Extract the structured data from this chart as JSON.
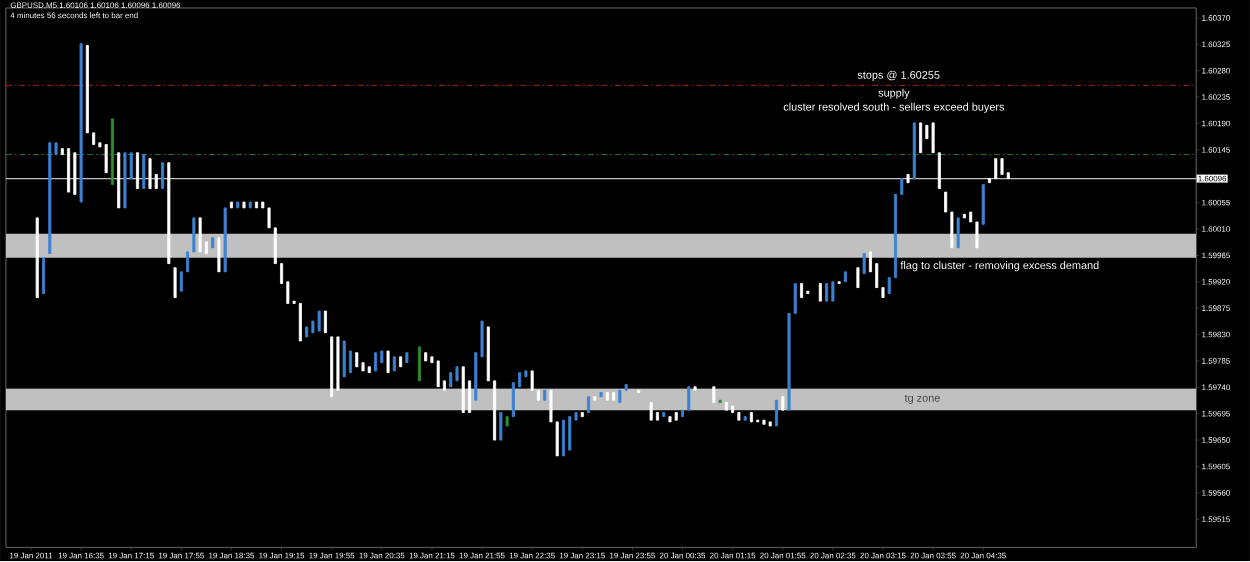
{
  "chart_data": {
    "type": "candlestick",
    "title": "GBPUSD,M5  1.60106 1.60106 1.60096 1.60096",
    "subtitle": "4 minutes 56 seconds left to bar end",
    "x": [
      "2011-01-19T16:00",
      "2011-01-19T16:05",
      "2011-01-19T16:10",
      "2011-01-19T16:15",
      "2011-01-19T16:20",
      "2011-01-19T16:25",
      "2011-01-19T16:30",
      "2011-01-19T16:35",
      "2011-01-19T16:40",
      "2011-01-19T16:45",
      "2011-01-19T16:50",
      "2011-01-19T16:55",
      "2011-01-19T17:00",
      "2011-01-19T17:05",
      "2011-01-19T17:10",
      "2011-01-19T17:15",
      "2011-01-19T17:20",
      "2011-01-19T17:25",
      "2011-01-19T17:30",
      "2011-01-19T17:35",
      "2011-01-19T17:40",
      "2011-01-19T17:45",
      "2011-01-19T17:50",
      "2011-01-19T17:55",
      "2011-01-19T18:00",
      "2011-01-19T18:05",
      "2011-01-19T18:10",
      "2011-01-19T18:15",
      "2011-01-19T18:20",
      "2011-01-19T18:25",
      "2011-01-19T18:30",
      "2011-01-19T18:35",
      "2011-01-19T18:40",
      "2011-01-19T18:45",
      "2011-01-19T18:50",
      "2011-01-19T18:55",
      "2011-01-19T19:00",
      "2011-01-19T19:05",
      "2011-01-19T19:10",
      "2011-01-19T19:15",
      "2011-01-19T19:20",
      "2011-01-19T19:25",
      "2011-01-19T19:30",
      "2011-01-19T19:35",
      "2011-01-19T19:40",
      "2011-01-19T19:45",
      "2011-01-19T19:50",
      "2011-01-19T19:55",
      "2011-01-19T20:00",
      "2011-01-19T20:05",
      "2011-01-19T20:10",
      "2011-01-19T20:15",
      "2011-01-19T20:20",
      "2011-01-19T20:25",
      "2011-01-19T20:30",
      "2011-01-19T20:35",
      "2011-01-19T20:40",
      "2011-01-19T20:45",
      "2011-01-19T20:50",
      "2011-01-19T20:55",
      "2011-01-19T21:05",
      "2011-01-19T21:10",
      "2011-01-19T21:15",
      "2011-01-19T21:20",
      "2011-01-19T21:25",
      "2011-01-19T21:30",
      "2011-01-19T21:35",
      "2011-01-19T21:40",
      "2011-01-19T21:45",
      "2011-01-19T21:50",
      "2011-01-19T21:55",
      "2011-01-19T22:00",
      "2011-01-19T22:05",
      "2011-01-19T22:10",
      "2011-01-19T22:15",
      "2011-01-19T22:20",
      "2011-01-19T22:25",
      "2011-01-19T22:30",
      "2011-01-19T22:35",
      "2011-01-19T22:40",
      "2011-01-19T22:45",
      "2011-01-19T22:50",
      "2011-01-19T22:55",
      "2011-01-19T23:00",
      "2011-01-19T23:05",
      "2011-01-19T23:10",
      "2011-01-19T23:15",
      "2011-01-19T23:20",
      "2011-01-19T23:25",
      "2011-01-19T23:30",
      "2011-01-19T23:35",
      "2011-01-19T23:40",
      "2011-01-19T23:45",
      "2011-01-19T23:50",
      "2011-01-20T00:00",
      "2011-01-20T00:10",
      "2011-01-20T00:15",
      "2011-01-20T00:20",
      "2011-01-20T00:25",
      "2011-01-20T00:30",
      "2011-01-20T00:35",
      "2011-01-20T00:40",
      "2011-01-20T00:45",
      "2011-01-20T01:00",
      "2011-01-20T01:05",
      "2011-01-20T01:10",
      "2011-01-20T01:15",
      "2011-01-20T01:20",
      "2011-01-20T01:25",
      "2011-01-20T01:30",
      "2011-01-20T01:35",
      "2011-01-20T01:40",
      "2011-01-20T01:45",
      "2011-01-20T01:50",
      "2011-01-20T01:55",
      "2011-01-20T02:00",
      "2011-01-20T02:05",
      "2011-01-20T02:10",
      "2011-01-20T02:15",
      "2011-01-20T02:25",
      "2011-01-20T02:30",
      "2011-01-20T02:35",
      "2011-01-20T02:40",
      "2011-01-20T02:45",
      "2011-01-20T02:55",
      "2011-01-20T03:00",
      "2011-01-20T03:05",
      "2011-01-20T03:10",
      "2011-01-20T03:15",
      "2011-01-20T03:20",
      "2011-01-20T03:25",
      "2011-01-20T03:30",
      "2011-01-20T03:35",
      "2011-01-20T03:40",
      "2011-01-20T03:45",
      "2011-01-20T03:50",
      "2011-01-20T03:55",
      "2011-01-20T04:00",
      "2011-01-20T04:05",
      "2011-01-20T04:10",
      "2011-01-20T04:15",
      "2011-01-20T04:20",
      "2011-01-20T04:25",
      "2011-01-20T04:30",
      "2011-01-20T04:35",
      "2011-01-20T04:40",
      "2011-01-20T04:45",
      "2011-01-20T04:50",
      "2011-01-20T04:55"
    ],
    "colors": [
      "#ffffff",
      "#3c82d2",
      "#3c82d2",
      "#3c82d2",
      "#ffffff",
      "#ffffff",
      "#ffffff",
      "#3c82d2",
      "#ffffff",
      "#ffffff",
      "#ffffff",
      "#ffffff",
      "#2e8b2e",
      "#ffffff",
      "#3c82d2",
      "#3c82d2",
      "#ffffff",
      "#3c82d2",
      "#ffffff",
      "#ffffff",
      "#3c82d2",
      "#ffffff",
      "#ffffff",
      "#3c82d2",
      "#3c82d2",
      "#3c82d2",
      "#ffffff",
      "#ffffff",
      "#3c82d2",
      "#ffffff",
      "#3c82d2",
      "#ffffff",
      "#3c82d2",
      "#ffffff",
      "#3c82d2",
      "#ffffff",
      "#ffffff",
      "#ffffff",
      "#ffffff",
      "#ffffff",
      "#ffffff",
      "#ffffff",
      "#ffffff",
      "#3c82d2",
      "#3c82d2",
      "#3c82d2",
      "#ffffff",
      "#ffffff",
      "#ffffff",
      "#3c82d2",
      "#3c82d2",
      "#ffffff",
      "#ffffff",
      "#ffffff",
      "#3c82d2",
      "#3c82d2",
      "#ffffff",
      "#3c82d2",
      "#ffffff",
      "#3c82d2",
      "#2e8b2e",
      "#ffffff",
      "#ffffff",
      "#ffffff",
      "#ffffff",
      "#3c82d2",
      "#3c82d2",
      "#ffffff",
      "#ffffff",
      "#3c82d2",
      "#3c82d2",
      "#ffffff",
      "#ffffff",
      "#3c82d2",
      "#2e8b2e",
      "#3c82d2",
      "#3c82d2",
      "#3c82d2",
      "#ffffff",
      "#ffffff",
      "#3c82d2",
      "#ffffff",
      "#ffffff",
      "#3c82d2",
      "#3c82d2",
      "#3c82d2",
      "#ffffff",
      "#3c82d2",
      "#ffffff",
      "#3c82d2",
      "#ffffff",
      "#ffffff",
      "#3c82d2",
      "#3c82d2",
      "#ffffff",
      "#ffffff",
      "#ffffff",
      "#3c82d2",
      "#ffffff",
      "#ffffff",
      "#3c82d2",
      "#3c82d2",
      "#ffffff",
      "#ffffff",
      "#2e8b2e",
      "#ffffff",
      "#ffffff",
      "#ffffff",
      "#3c82d2",
      "#ffffff",
      "#ffffff",
      "#ffffff",
      "#ffffff",
      "#3c82d2",
      "#ffffff",
      "#3c82d2",
      "#3c82d2",
      "#ffffff",
      "#ffffff",
      "#ffffff",
      "#3c82d2",
      "#3c82d2",
      "#ffffff",
      "#3c82d2",
      "#ffffff",
      "#3c82d2",
      "#ffffff",
      "#ffffff",
      "#ffffff",
      "#3c82d2",
      "#3c82d2",
      "#3c82d2",
      "#ffffff",
      "#3c82d2",
      "#ffffff",
      "#ffffff",
      "#ffffff",
      "#ffffff",
      "#ffffff",
      "#ffffff",
      "#3c82d2",
      "#ffffff",
      "#ffffff",
      "#ffffff",
      "#3c82d2",
      "#ffffff",
      "#ffffff",
      "#ffffff",
      "#ffffff"
    ],
    "ohlc": [
      [
        1.60029,
        1.60029,
        1.59893,
        1.59893
      ],
      [
        1.599,
        1.59961,
        1.599,
        1.59961
      ],
      [
        1.59968,
        1.60157,
        1.59968,
        1.60157
      ],
      [
        1.60137,
        1.60157,
        1.60137,
        1.60157
      ],
      [
        1.60147,
        1.60147,
        1.60137,
        1.60137
      ],
      [
        1.60147,
        1.60147,
        1.60073,
        1.60073
      ],
      [
        1.6014,
        1.6014,
        1.60069,
        1.60069
      ],
      [
        1.60056,
        1.60326,
        1.60056,
        1.60326
      ],
      [
        1.60323,
        1.60323,
        1.60174,
        1.60174
      ],
      [
        1.60174,
        1.60174,
        1.60154,
        1.60154
      ],
      [
        1.60157,
        1.60157,
        1.6015,
        1.6015
      ],
      [
        1.60154,
        1.60154,
        1.60106,
        1.60106
      ],
      [
        1.60086,
        1.60198,
        1.60086,
        1.60198
      ],
      [
        1.6014,
        1.6014,
        1.60046,
        1.60046
      ],
      [
        1.60046,
        1.6014,
        1.60046,
        1.6014
      ],
      [
        1.60096,
        1.6014,
        1.60096,
        1.6014
      ],
      [
        1.6014,
        1.6014,
        1.60079,
        1.60079
      ],
      [
        1.60079,
        1.60137,
        1.60079,
        1.60137
      ],
      [
        1.6013,
        1.6013,
        1.60079,
        1.60079
      ],
      [
        1.60103,
        1.60103,
        1.60079,
        1.60079
      ],
      [
        1.60079,
        1.60123,
        1.60079,
        1.60123
      ],
      [
        1.60123,
        1.60123,
        1.59951,
        1.59951
      ],
      [
        1.59944,
        1.59944,
        1.59893,
        1.59893
      ],
      [
        1.59904,
        1.59937,
        1.59904,
        1.59937
      ],
      [
        1.59937,
        1.59971,
        1.59937,
        1.59971
      ],
      [
        1.59971,
        1.60029,
        1.59971,
        1.60029
      ],
      [
        1.60029,
        1.60029,
        1.59971,
        1.59971
      ],
      [
        1.59988,
        1.59988,
        1.59968,
        1.59968
      ],
      [
        1.59978,
        1.59995,
        1.59978,
        1.59995
      ],
      [
        1.59995,
        1.59995,
        1.59937,
        1.59937
      ],
      [
        1.59937,
        1.60046,
        1.59937,
        1.60046
      ],
      [
        1.60056,
        1.60056,
        1.60046,
        1.60046
      ],
      [
        1.60046,
        1.60056,
        1.60046,
        1.60056
      ],
      [
        1.60056,
        1.60056,
        1.60046,
        1.60046
      ],
      [
        1.60046,
        1.60056,
        1.60046,
        1.60056
      ],
      [
        1.60056,
        1.60056,
        1.60046,
        1.60046
      ],
      [
        1.60056,
        1.60056,
        1.60046,
        1.60046
      ],
      [
        1.60046,
        1.60046,
        1.60012,
        1.60012
      ],
      [
        1.60012,
        1.60012,
        1.59951,
        1.59951
      ],
      [
        1.59951,
        1.59951,
        1.59917,
        1.59917
      ],
      [
        1.5992,
        1.5992,
        1.59883,
        1.59883
      ],
      [
        1.59887,
        1.59887,
        1.59883,
        1.59883
      ],
      [
        1.59883,
        1.59883,
        1.59819,
        1.59819
      ],
      [
        1.59826,
        1.59843,
        1.59826,
        1.59843
      ],
      [
        1.59833,
        1.59853,
        1.59833,
        1.59853
      ],
      [
        1.59836,
        1.5987,
        1.59836,
        1.5987
      ],
      [
        1.5987,
        1.5987,
        1.59833,
        1.59833
      ],
      [
        1.59826,
        1.59826,
        1.59724,
        1.59724
      ],
      [
        1.59826,
        1.59826,
        1.59735,
        1.59735
      ],
      [
        1.59758,
        1.59819,
        1.59758,
        1.59819
      ],
      [
        1.59765,
        1.59802,
        1.59765,
        1.59802
      ],
      [
        1.59799,
        1.59799,
        1.59775,
        1.59775
      ],
      [
        1.59782,
        1.59782,
        1.59768,
        1.59768
      ],
      [
        1.59775,
        1.59775,
        1.59765,
        1.59765
      ],
      [
        1.59768,
        1.59799,
        1.59768,
        1.59799
      ],
      [
        1.59782,
        1.59802,
        1.59782,
        1.59802
      ],
      [
        1.59802,
        1.59802,
        1.59765,
        1.59765
      ],
      [
        1.59768,
        1.59792,
        1.59768,
        1.59792
      ],
      [
        1.59792,
        1.59792,
        1.59775,
        1.59775
      ],
      [
        1.59782,
        1.59799,
        1.59782,
        1.59799
      ],
      [
        1.59751,
        1.59809,
        1.59751,
        1.59809
      ],
      [
        1.59799,
        1.59799,
        1.59785,
        1.59785
      ],
      [
        1.59792,
        1.59792,
        1.59782,
        1.59782
      ],
      [
        1.59785,
        1.59785,
        1.59741,
        1.59741
      ],
      [
        1.59751,
        1.59751,
        1.59735,
        1.59735
      ],
      [
        1.59741,
        1.59765,
        1.59741,
        1.59765
      ],
      [
        1.59751,
        1.59775,
        1.59751,
        1.59775
      ],
      [
        1.59775,
        1.59775,
        1.59697,
        1.59697
      ],
      [
        1.59751,
        1.59751,
        1.59697,
        1.59697
      ],
      [
        1.59718,
        1.59799,
        1.59718,
        1.59799
      ],
      [
        1.59792,
        1.59853,
        1.59792,
        1.59853
      ],
      [
        1.59843,
        1.59843,
        1.59751,
        1.59751
      ],
      [
        1.59751,
        1.59751,
        1.5965,
        1.5965
      ],
      [
        1.5965,
        1.59697,
        1.5965,
        1.59697
      ],
      [
        1.59674,
        1.5969,
        1.59674,
        1.5969
      ],
      [
        1.5969,
        1.59748,
        1.5969,
        1.59748
      ],
      [
        1.59741,
        1.59765,
        1.59741,
        1.59765
      ],
      [
        1.59758,
        1.59768,
        1.59758,
        1.59768
      ],
      [
        1.59768,
        1.59768,
        1.59735,
        1.59735
      ],
      [
        1.59735,
        1.59735,
        1.59718,
        1.59718
      ],
      [
        1.59718,
        1.59735,
        1.59718,
        1.59735
      ],
      [
        1.59735,
        1.59735,
        1.59681,
        1.59681
      ],
      [
        1.59681,
        1.59681,
        1.59623,
        1.59623
      ],
      [
        1.59623,
        1.59684,
        1.59623,
        1.59684
      ],
      [
        1.59633,
        1.5969,
        1.59633,
        1.5969
      ],
      [
        1.59684,
        1.59697,
        1.59684,
        1.59697
      ],
      [
        1.59697,
        1.59697,
        1.5969,
        1.5969
      ],
      [
        1.59697,
        1.59724,
        1.59697,
        1.59724
      ],
      [
        1.59724,
        1.59724,
        1.59718,
        1.59718
      ],
      [
        1.59724,
        1.59731,
        1.59724,
        1.59731
      ],
      [
        1.59731,
        1.59731,
        1.59718,
        1.59718
      ],
      [
        1.59731,
        1.59731,
        1.59718,
        1.59718
      ],
      [
        1.59714,
        1.59735,
        1.59714,
        1.59735
      ],
      [
        1.59735,
        1.59745,
        1.59735,
        1.59745
      ],
      [
        1.59735,
        1.59735,
        1.59731,
        1.59731
      ],
      [
        1.59714,
        1.59714,
        1.59684,
        1.59684
      ],
      [
        1.59697,
        1.59697,
        1.59684,
        1.59684
      ],
      [
        1.5969,
        1.59697,
        1.5969,
        1.59697
      ],
      [
        1.5969,
        1.5969,
        1.59681,
        1.59681
      ],
      [
        1.59697,
        1.59697,
        1.59684,
        1.59684
      ],
      [
        1.5969,
        1.59701,
        1.5969,
        1.59701
      ],
      [
        1.59701,
        1.59741,
        1.59701,
        1.59741
      ],
      [
        1.59741,
        1.59741,
        1.59735,
        1.59735
      ],
      [
        1.59741,
        1.59741,
        1.59714,
        1.59714
      ],
      [
        1.59714,
        1.59718,
        1.59714,
        1.59718
      ],
      [
        1.59714,
        1.59714,
        1.59701,
        1.59701
      ],
      [
        1.59708,
        1.59708,
        1.59697,
        1.59697
      ],
      [
        1.59697,
        1.59697,
        1.59684,
        1.59684
      ],
      [
        1.59684,
        1.5969,
        1.59684,
        1.5969
      ],
      [
        1.59697,
        1.59697,
        1.59681,
        1.59681
      ],
      [
        1.59684,
        1.59684,
        1.59681,
        1.59681
      ],
      [
        1.59684,
        1.59684,
        1.59677,
        1.59677
      ],
      [
        1.59681,
        1.59681,
        1.59674,
        1.59674
      ],
      [
        1.59674,
        1.59718,
        1.59674,
        1.59718
      ],
      [
        1.59724,
        1.59724,
        1.59701,
        1.59701
      ],
      [
        1.59701,
        1.59866,
        1.59701,
        1.59866
      ],
      [
        1.59866,
        1.59917,
        1.59866,
        1.59917
      ],
      [
        1.59917,
        1.59917,
        1.59893,
        1.59893
      ],
      [
        1.59904,
        1.59904,
        1.599,
        1.599
      ],
      [
        1.59917,
        1.59917,
        1.59887,
        1.59887
      ],
      [
        1.59887,
        1.59917,
        1.59887,
        1.59917
      ],
      [
        1.59887,
        1.5992,
        1.59887,
        1.5992
      ],
      [
        1.5992,
        1.5992,
        1.59917,
        1.59917
      ],
      [
        1.5992,
        1.59937,
        1.5992,
        1.59937
      ],
      [
        1.59944,
        1.59944,
        1.5991,
        1.5991
      ],
      [
        1.59934,
        1.59968,
        1.59934,
        1.59968
      ],
      [
        1.59971,
        1.59971,
        1.59937,
        1.59937
      ],
      [
        1.59951,
        1.59951,
        1.5991,
        1.5991
      ],
      [
        1.5991,
        1.5991,
        1.59893,
        1.59893
      ],
      [
        1.599,
        1.59927,
        1.599,
        1.59927
      ],
      [
        1.59927,
        1.60069,
        1.59927,
        1.60069
      ],
      [
        1.60069,
        1.60096,
        1.60069,
        1.60096
      ],
      [
        1.60103,
        1.60103,
        1.60089,
        1.60089
      ],
      [
        1.60096,
        1.60191,
        1.60096,
        1.60191
      ],
      [
        1.60191,
        1.60191,
        1.6014,
        1.6014
      ],
      [
        1.60187,
        1.60187,
        1.60164,
        1.60164
      ],
      [
        1.60191,
        1.60191,
        1.6014,
        1.6014
      ],
      [
        1.6014,
        1.6014,
        1.60079,
        1.60079
      ],
      [
        1.60073,
        1.60073,
        1.60039,
        1.60039
      ],
      [
        1.60039,
        1.60039,
        1.59978,
        1.59978
      ],
      [
        1.59978,
        1.60029,
        1.59978,
        1.60029
      ],
      [
        1.60035,
        1.60035,
        1.60029,
        1.60029
      ],
      [
        1.60039,
        1.60039,
        1.60022,
        1.60022
      ],
      [
        1.60022,
        1.60022,
        1.59978,
        1.59978
      ],
      [
        1.60018,
        1.60086,
        1.60018,
        1.60086
      ],
      [
        1.60096,
        1.60096,
        1.60089,
        1.60089
      ],
      [
        1.6013,
        1.6013,
        1.60096,
        1.60096
      ],
      [
        1.6013,
        1.6013,
        1.60103,
        1.60103
      ],
      [
        1.60106,
        1.60106,
        1.60096,
        1.60096
      ]
    ],
    "xlim": [
      "2011-01-19T15:35",
      "2011-01-20T07:25"
    ],
    "xticks": [
      {
        "value": "2011-01-19T15:55",
        "label": "19 Jan 2011"
      },
      {
        "value": "2011-01-19T16:35",
        "label": "19 Jan 16:35"
      },
      {
        "value": "2011-01-19T17:15",
        "label": "19 Jan 17:15"
      },
      {
        "value": "2011-01-19T17:55",
        "label": "19 Jan 17:55"
      },
      {
        "value": "2011-01-19T18:35",
        "label": "19 Jan 18:35"
      },
      {
        "value": "2011-01-19T19:15",
        "label": "19 Jan 19:15"
      },
      {
        "value": "2011-01-19T19:55",
        "label": "19 Jan 19:55"
      },
      {
        "value": "2011-01-19T20:35",
        "label": "19 Jan 20:35"
      },
      {
        "value": "2011-01-19T21:15",
        "label": "19 Jan 21:15"
      },
      {
        "value": "2011-01-19T21:55",
        "label": "19 Jan 21:55"
      },
      {
        "value": "2011-01-19T22:35",
        "label": "19 Jan 22:35"
      },
      {
        "value": "2011-01-19T23:15",
        "label": "19 Jan 23:15"
      },
      {
        "value": "2011-01-19T23:55",
        "label": "19 Jan 23:55"
      },
      {
        "value": "2011-01-20T00:35",
        "label": "20 Jan 00:35"
      },
      {
        "value": "2011-01-20T01:15",
        "label": "20 Jan 01:15"
      },
      {
        "value": "2011-01-20T01:55",
        "label": "20 Jan 01:55"
      },
      {
        "value": "2011-01-20T02:35",
        "label": "20 Jan 02:35"
      },
      {
        "value": "2011-01-20T03:15",
        "label": "20 Jan 03:15"
      },
      {
        "value": "2011-01-20T03:55",
        "label": "20 Jan 03:55"
      },
      {
        "value": "2011-01-20T04:35",
        "label": "20 Jan 04:35"
      }
    ],
    "ylim": [
      1.59467,
      1.60387
    ],
    "yticks": [
      {
        "value": 1.6037,
        "label": "1.60370"
      },
      {
        "value": 1.60325,
        "label": "1.60325"
      },
      {
        "value": 1.6028,
        "label": "1.60280"
      },
      {
        "value": 1.60235,
        "label": "1.60235"
      },
      {
        "value": 1.6019,
        "label": "1.60190"
      },
      {
        "value": 1.60145,
        "label": "1.60145"
      },
      {
        "value": 1.60055,
        "label": "1.60055"
      },
      {
        "value": 1.6001,
        "label": "1.60010"
      },
      {
        "value": 1.59965,
        "label": "1.59965"
      },
      {
        "value": 1.5992,
        "label": "1.59920"
      },
      {
        "value": 1.59875,
        "label": "1.59875"
      },
      {
        "value": 1.5983,
        "label": "1.59830"
      },
      {
        "value": 1.59785,
        "label": "1.59785"
      },
      {
        "value": 1.5974,
        "label": "1.59740"
      },
      {
        "value": 1.59695,
        "label": "1.59695"
      },
      {
        "value": 1.5965,
        "label": "1.59650"
      },
      {
        "value": 1.59605,
        "label": "1.59605"
      },
      {
        "value": 1.5956,
        "label": "1.59560"
      },
      {
        "value": 1.59515,
        "label": "1.59515"
      }
    ],
    "ref_lines": [
      {
        "axis": "y",
        "value": 1.60255,
        "label": "stops @ 1.60255",
        "color": "#8b1a1a",
        "line_style": "dashed"
      },
      {
        "axis": "y",
        "value": 1.60137,
        "color": "#2e6b2e",
        "line_style": "dashed"
      },
      {
        "axis": "y",
        "value": 1.60096,
        "label": "1.60096",
        "color": "#c0c0c0",
        "line_style": "solid"
      }
    ],
    "bands": [
      {
        "axis": "y",
        "from": 1.59961,
        "to": 1.60002,
        "label": "flag to cluster - removing excess demand",
        "color": "#c0c0c0"
      },
      {
        "axis": "y",
        "from": 1.59701,
        "to": 1.59738,
        "label": "tg zone",
        "color": "#c0c0c0"
      }
    ],
    "annotations": [
      "supply",
      "cluster resolved south - sellers exceed buyers"
    ]
  }
}
